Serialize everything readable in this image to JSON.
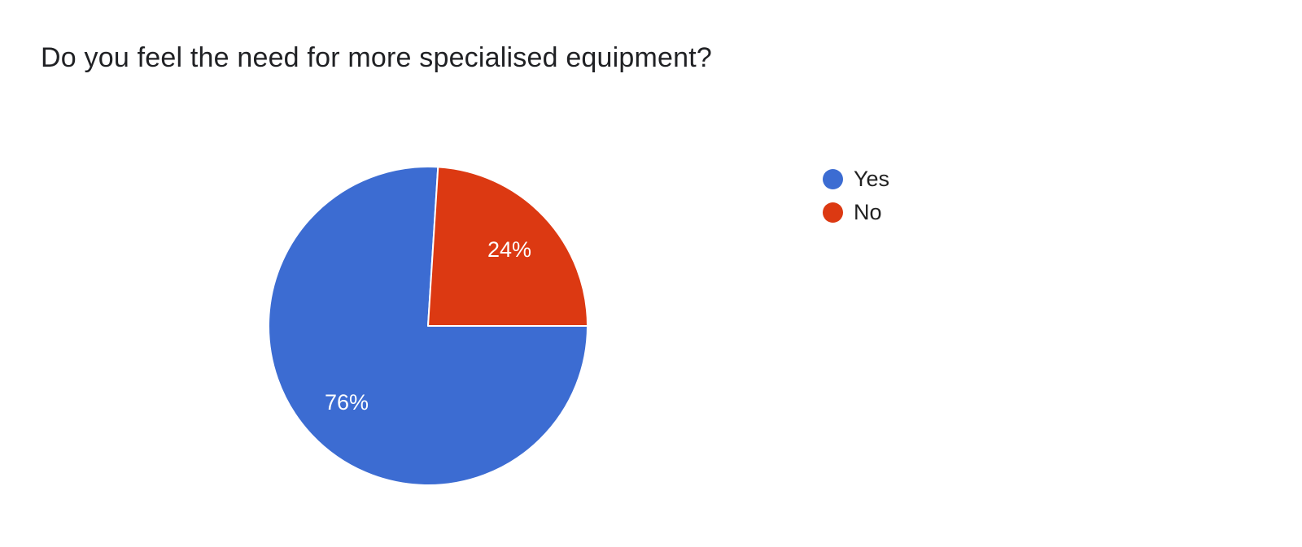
{
  "title": {
    "text": "Do you feel the need for more specialised equipment?",
    "color": "#202124"
  },
  "colors": {
    "background": "#ffffff",
    "slice_divider": "#ffffff",
    "slice_label_text": "#ffffff",
    "legend_text": "#212121"
  },
  "legend": {
    "position": "right",
    "items": [
      {
        "label": "Yes",
        "color": "#3c6cd2"
      },
      {
        "label": "No",
        "color": "#dc3912"
      }
    ]
  },
  "chart_data": {
    "type": "pie",
    "title": "Do you feel the need for more specialised equipment?",
    "categories": [
      "Yes",
      "No"
    ],
    "values": [
      76,
      24
    ],
    "unit": "%",
    "slice_labels": [
      "76%",
      "24%"
    ],
    "colors": [
      "#3c6cd2",
      "#dc3912"
    ],
    "legend_position": "right",
    "start_angle_deg": 90,
    "direction": "clockwise",
    "label_radius_fraction": 0.7,
    "grid": false
  }
}
